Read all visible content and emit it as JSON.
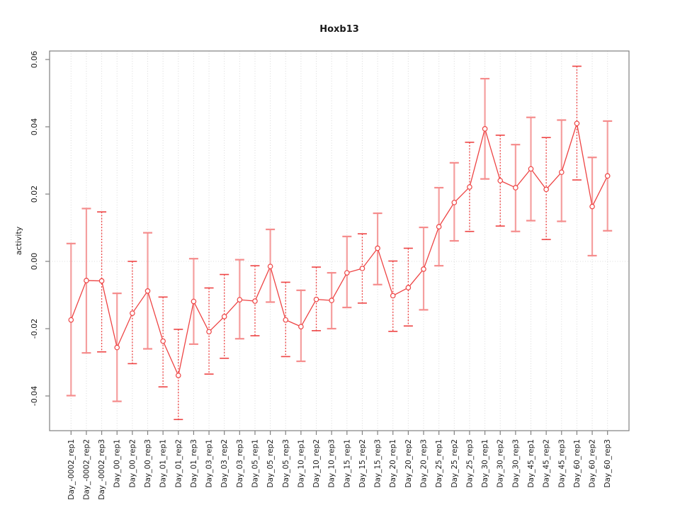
{
  "chart_data": {
    "type": "scatter",
    "title": "Hoxb13",
    "xlabel": "",
    "ylabel": "activity",
    "legend": "none",
    "grid": {
      "vertical_dotted": true,
      "zero_line_dotted": true
    },
    "ylim": [
      -0.0503,
      0.0625
    ],
    "yticks": [
      -0.04,
      -0.02,
      0.0,
      0.02,
      0.04,
      0.06
    ],
    "ytick_labels": [
      "-0.04",
      "-0.02",
      "0.00",
      "0.02",
      "0.04",
      "0.06"
    ],
    "categories": [
      "Day_-0002_rep1",
      "Day_-0002_rep2",
      "Day_-0002_rep3",
      "Day_00_rep1",
      "Day_00_rep2",
      "Day_00_rep3",
      "Day_01_rep1",
      "Day_01_rep2",
      "Day_01_rep3",
      "Day_03_rep1",
      "Day_03_rep2",
      "Day_03_rep3",
      "Day_05_rep1",
      "Day_05_rep2",
      "Day_05_rep3",
      "Day_10_rep1",
      "Day_10_rep2",
      "Day_10_rep3",
      "Day_15_rep1",
      "Day_15_rep2",
      "Day_15_rep3",
      "Day_20_rep1",
      "Day_20_rep2",
      "Day_20_rep3",
      "Day_25_rep1",
      "Day_25_rep2",
      "Day_25_rep3",
      "Day_30_rep1",
      "Day_30_rep2",
      "Day_30_rep3",
      "Day_45_rep1",
      "Day_45_rep2",
      "Day_45_rep3",
      "Day_60_rep1",
      "Day_60_rep2",
      "Day_60_rep3"
    ],
    "series": [
      {
        "name": "activity",
        "values": [
          -0.0174,
          -0.0057,
          -0.0058,
          -0.0256,
          -0.0154,
          -0.0088,
          -0.0237,
          -0.0339,
          -0.0119,
          -0.0209,
          -0.0164,
          -0.0114,
          -0.0118,
          -0.0015,
          -0.0174,
          -0.0194,
          -0.0113,
          -0.0116,
          -0.0034,
          -0.0021,
          0.0039,
          -0.0102,
          -0.0078,
          -0.0023,
          0.0103,
          0.0175,
          0.0221,
          0.0394,
          0.024,
          0.0219,
          0.0275,
          0.0214,
          0.0265,
          0.041,
          0.0163,
          0.0254
        ],
        "error_high": [
          0.0053,
          0.0157,
          0.0147,
          -0.0095,
          0.0,
          0.0085,
          -0.0106,
          -0.0202,
          0.0008,
          -0.0079,
          -0.0039,
          0.0005,
          -0.0013,
          0.0095,
          -0.0062,
          -0.0086,
          -0.0017,
          -0.0034,
          0.0074,
          0.0082,
          0.0143,
          0.0001,
          0.0039,
          0.0101,
          0.0219,
          0.0293,
          0.0354,
          0.0543,
          0.0375,
          0.0347,
          0.0428,
          0.0368,
          0.042,
          0.058,
          0.0309,
          0.0417
        ],
        "error_low": [
          -0.0399,
          -0.0272,
          -0.0269,
          -0.0416,
          -0.0304,
          -0.026,
          -0.0373,
          -0.047,
          -0.0246,
          -0.0335,
          -0.0288,
          -0.023,
          -0.0221,
          -0.0121,
          -0.0283,
          -0.0297,
          -0.0206,
          -0.02,
          -0.0137,
          -0.0124,
          -0.0069,
          -0.0208,
          -0.0192,
          -0.0144,
          -0.0013,
          0.0061,
          0.0089,
          0.0245,
          0.0105,
          0.0089,
          0.0121,
          0.0065,
          0.0119,
          0.0242,
          0.0017,
          0.0091
        ]
      }
    ],
    "bar_styles": [
      "solid",
      "solid",
      "dash",
      "solid",
      "dash",
      "solid",
      "dash",
      "dash",
      "solid",
      "dash",
      "dash",
      "solid",
      "dash",
      "solid",
      "dash",
      "solid",
      "dash",
      "solid",
      "solid",
      "dash",
      "solid",
      "dash",
      "dash",
      "solid",
      "solid",
      "solid",
      "dash",
      "solid",
      "dash",
      "solid",
      "solid",
      "dash",
      "solid",
      "dash",
      "solid",
      "solid"
    ],
    "colors": {
      "point_stroke": "#ee4444",
      "line": "#ee4444",
      "error_solid": "#f59f9f",
      "error_cap": "#f58c8c",
      "error_dash": "#ee4444",
      "frame": "#808080",
      "tick": "#808080",
      "grid": "#d9d9d9",
      "zero_line": "#dcdcdc",
      "text": "#1a1a1a",
      "background": "#ffffff"
    }
  }
}
